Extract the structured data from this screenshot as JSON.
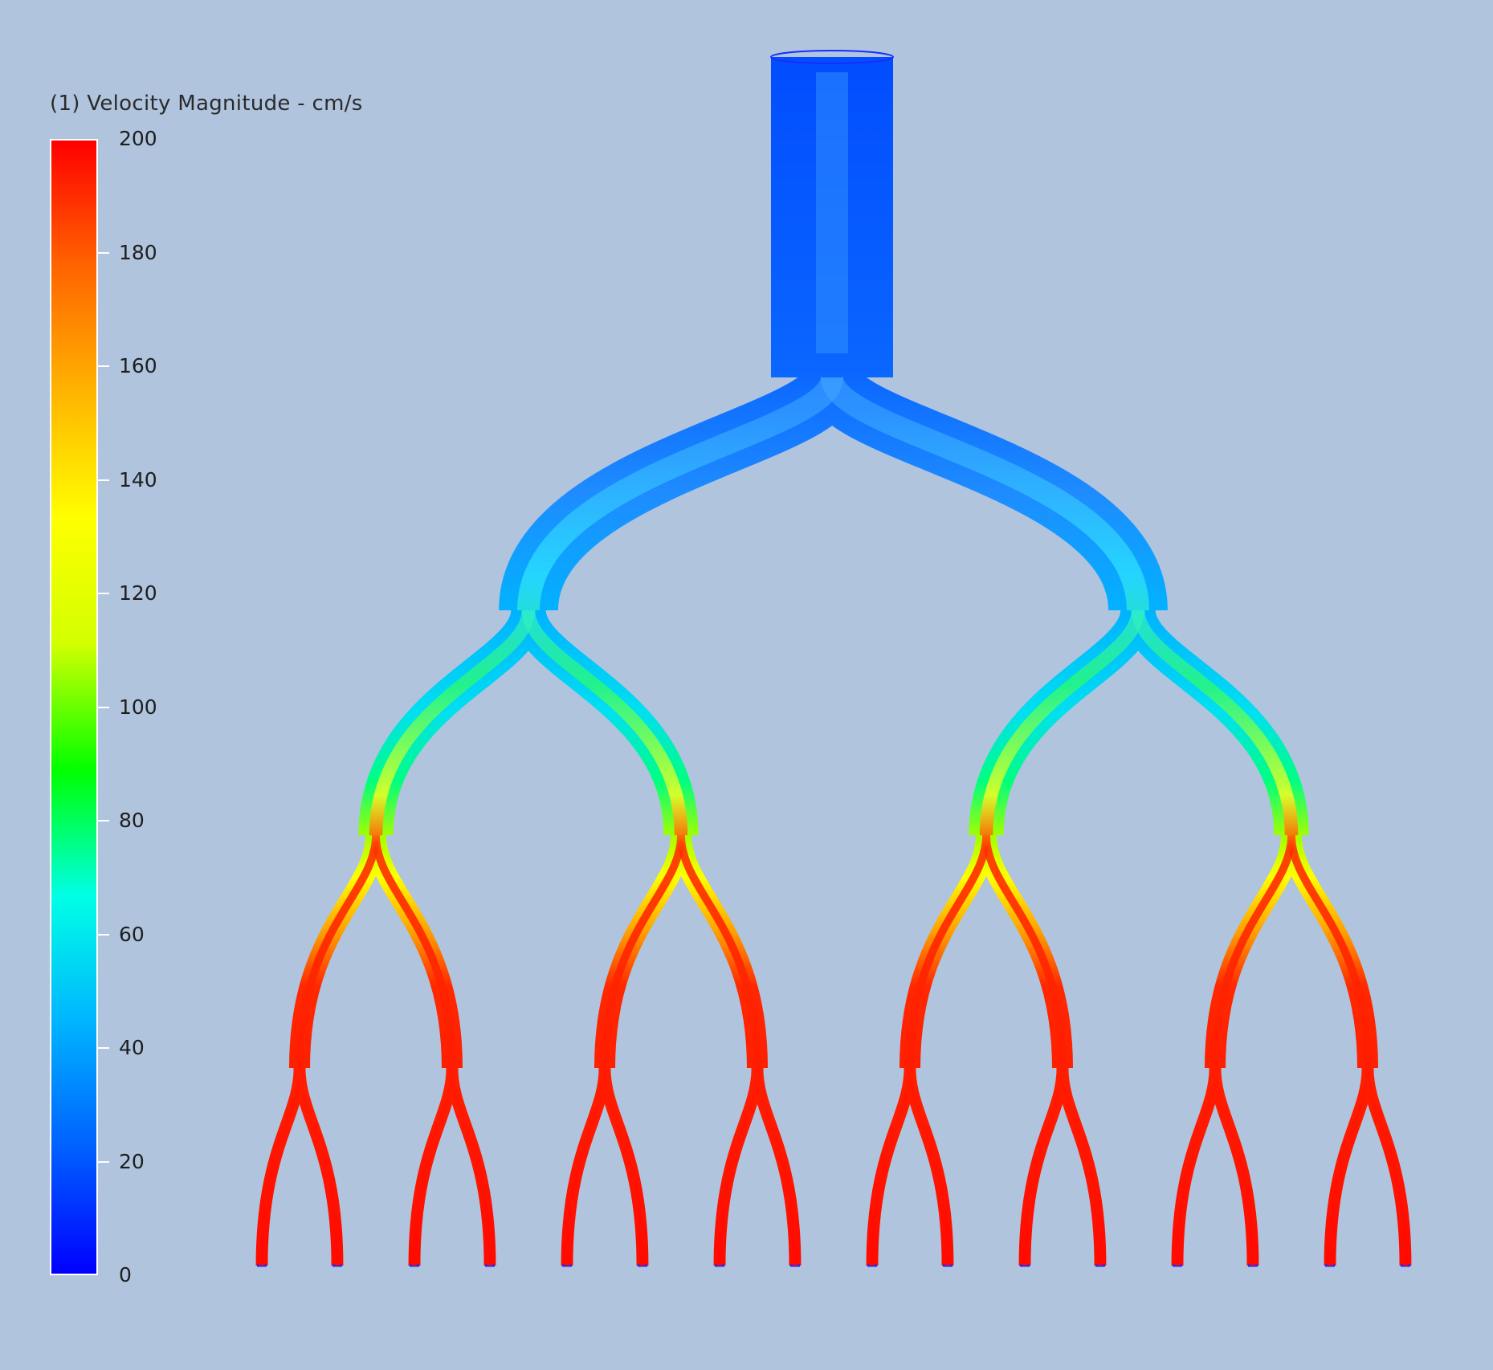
{
  "legend": {
    "title": "(1) Velocity Magnitude - cm/s",
    "min": 0,
    "max": 200,
    "ticks": [
      "200",
      "180",
      "160",
      "140",
      "120",
      "100",
      "80",
      "60",
      "40",
      "20",
      "0"
    ],
    "colorscale": [
      "#0000ff",
      "#0060ff",
      "#00b4ff",
      "#00ffe6",
      "#00ff00",
      "#d2ff00",
      "#ffff00",
      "#ffb400",
      "#ff6400",
      "#ff0000"
    ]
  },
  "colors": {
    "background": "#B0C4DE",
    "low_velocity": "#0048ff",
    "high_velocity": "#ff0000"
  },
  "model": {
    "type": "bifurcating-vessel-tree",
    "levels": 6,
    "outlets": 16
  }
}
